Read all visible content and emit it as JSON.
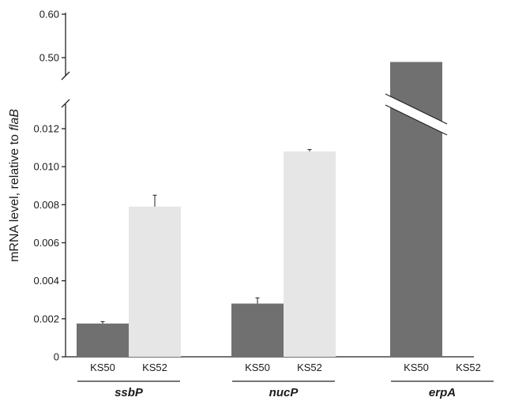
{
  "chart_data": {
    "type": "bar",
    "ylabel": "mRNA level, relative to",
    "ylabel_gene": "flaB",
    "groups": [
      "ssbP",
      "nucP",
      "erpA"
    ],
    "series": [
      {
        "name": "KS50",
        "color": "#707070",
        "values": [
          0.00175,
          0.0028,
          0.49
        ],
        "errors": [
          0.0001,
          0.0003,
          0
        ]
      },
      {
        "name": "KS52",
        "color": "#e6e6e6",
        "values": [
          0.0079,
          0.0108,
          0
        ],
        "errors": [
          0.0006,
          0.0001,
          0
        ]
      }
    ],
    "y_axis_break": true,
    "y_lower_range": [
      0,
      0.012
    ],
    "y_upper_range": [
      0.5,
      0.6
    ],
    "y_lower_ticks": [
      {
        "v": 0,
        "label": "0"
      },
      {
        "v": 0.002,
        "label": "0.002"
      },
      {
        "v": 0.004,
        "label": "0.004"
      },
      {
        "v": 0.006,
        "label": "0.006"
      },
      {
        "v": 0.008,
        "label": "0.008"
      },
      {
        "v": 0.01,
        "label": "0.010"
      },
      {
        "v": 0.012,
        "label": "0.012"
      }
    ],
    "y_upper_ticks": [
      {
        "v": 0.5,
        "label": "0.50"
      },
      {
        "v": 0.6,
        "label": "0.60"
      }
    ],
    "grid": false
  }
}
